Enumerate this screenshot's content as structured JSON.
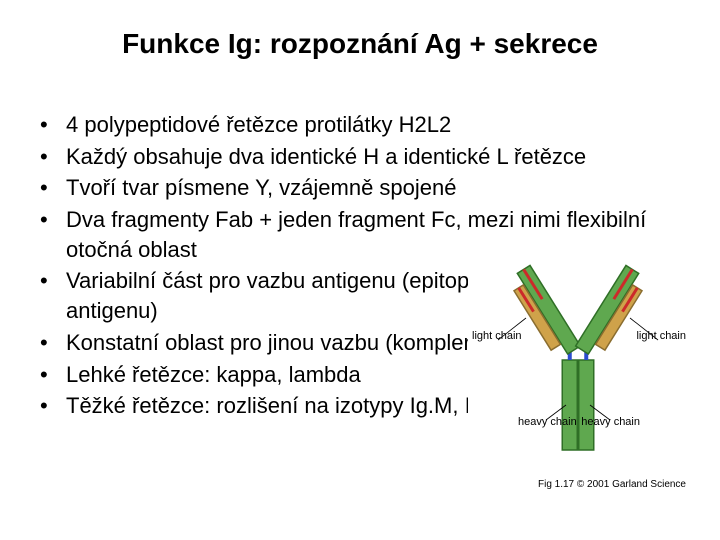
{
  "title": "Funkce Ig: rozpoznání Ag + sekrece",
  "bullets": [
    "4 polypeptidové řetězce protilátky H2L2",
    "Každý obsahuje dva identické H a identické L řetězce",
    "Tvoří tvar písmene Y, vzájemně spojené",
    "Dva fragmenty Fab + jeden fragment Fc, mezi nimi flexibilní otočná oblast",
    "Variabilní část pro vazbu antigenu (epitopy, determinanty antigenu)",
    "Konstatní oblast pro jinou vazbu (komplement, fagocytoza)",
    "Lehké řetězce: kappa, lambda",
    "Těžké řetězce: rozlišení na  izotypy Ig.M, Ig.D, Ig.G, Ig.A, Ig.E"
  ],
  "figure": {
    "caption": "Fig 1.17 © 2001 Garland Science",
    "labels": {
      "light_left": "light\nchain",
      "light_right": "light\nchain",
      "heavy_left": "heavy\nchain",
      "heavy_right": "heavy\nchain"
    },
    "colors": {
      "heavy_fill": "#5fa84f",
      "heavy_stroke": "#2f6f26",
      "light_fill": "#cfa24a",
      "light_stroke": "#8a6d2f",
      "variable_red": "#cc2a2a",
      "hinge_blue": "#2a4ccc",
      "bg": "#ffffff",
      "text": "#000000"
    },
    "geometry": {
      "arm_angle_deg": 32,
      "arm_len": 95,
      "stem_len": 90,
      "heavy_width": 15,
      "light_width": 11,
      "light_len": 70,
      "variable_len": 35,
      "hinge_gap": 10
    }
  }
}
